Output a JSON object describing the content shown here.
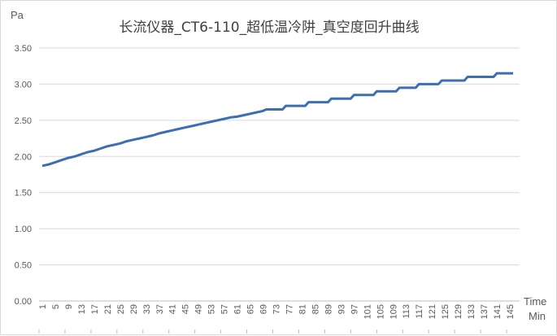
{
  "chart_data": {
    "type": "line",
    "title": "长流仪器_CT6-110_超低温冷阱_真空度回升曲线",
    "ylabel": "Pa",
    "xlabel_line1": "Time",
    "xlabel_line2": "Min",
    "ylim": [
      0,
      3.5
    ],
    "y_ticks": [
      "0.00",
      "0.50",
      "1.00",
      "1.50",
      "2.00",
      "2.50",
      "3.00",
      "3.50"
    ],
    "x_tick_labels": [
      "1",
      "5",
      "9",
      "13",
      "17",
      "21",
      "25",
      "29",
      "33",
      "37",
      "41",
      "45",
      "49",
      "53",
      "57",
      "61",
      "65",
      "69",
      "73",
      "77",
      "81",
      "85",
      "89",
      "93",
      "97",
      "101",
      "105",
      "109",
      "113",
      "117",
      "121",
      "125",
      "129",
      "133",
      "137",
      "141",
      "145"
    ],
    "grid": true,
    "series": [
      {
        "color": "#3c6eb4",
        "x": [
          1,
          3,
          5,
          7,
          9,
          11,
          13,
          15,
          17,
          19,
          21,
          23,
          25,
          27,
          29,
          31,
          33,
          35,
          37,
          39,
          41,
          43,
          45,
          47,
          49,
          51,
          53,
          55,
          57,
          59,
          61,
          63,
          65,
          67,
          69,
          70,
          75,
          76,
          82,
          83,
          89,
          90,
          96,
          97,
          103,
          104,
          110,
          111,
          116,
          117,
          123,
          124,
          131,
          132,
          140,
          141,
          146
        ],
        "values": [
          1.87,
          1.89,
          1.92,
          1.95,
          1.98,
          2.0,
          2.03,
          2.06,
          2.08,
          2.11,
          2.14,
          2.16,
          2.18,
          2.21,
          2.23,
          2.25,
          2.27,
          2.29,
          2.32,
          2.34,
          2.36,
          2.38,
          2.4,
          2.42,
          2.44,
          2.46,
          2.48,
          2.5,
          2.52,
          2.54,
          2.55,
          2.57,
          2.59,
          2.61,
          2.63,
          2.65,
          2.65,
          2.7,
          2.7,
          2.75,
          2.75,
          2.8,
          2.8,
          2.85,
          2.85,
          2.9,
          2.9,
          2.95,
          2.95,
          3.0,
          3.0,
          3.05,
          3.05,
          3.1,
          3.1,
          3.15,
          3.15
        ]
      }
    ]
  }
}
